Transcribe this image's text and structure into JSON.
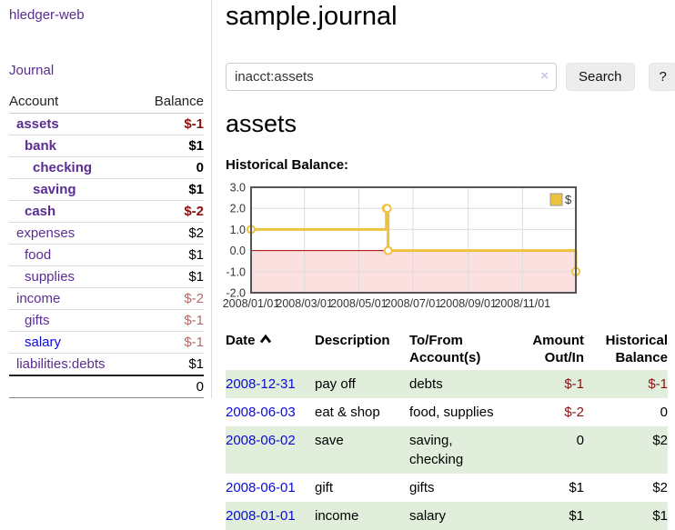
{
  "colors": {
    "purple": "#5b2d91",
    "blue": "#0b0bd5",
    "neg_strong": "#8b1111",
    "neg_soft": "#b26a6a",
    "stripe_green": "#e0eedb",
    "button_bg": "#ededed",
    "chart_line": "#edc240",
    "chart_negative_fill": "#fcdfdf",
    "chart_zero_line": "#a40000",
    "chart_grid": "#dcdcdc",
    "chart_border": "#545454"
  },
  "sidebar": {
    "brand": "hledger-web",
    "journal_link": "Journal",
    "table": {
      "headers": [
        "Account",
        "Balance"
      ],
      "rows": [
        {
          "account": "assets",
          "balance": "$-1",
          "indent": 0,
          "bold": true
        },
        {
          "account": "bank",
          "balance": "$1",
          "indent": 1,
          "bold": true
        },
        {
          "account": "checking",
          "balance": "0",
          "indent": 2,
          "bold": true
        },
        {
          "account": "saving",
          "balance": "$1",
          "indent": 2,
          "bold": true
        },
        {
          "account": "cash",
          "balance": "$-2",
          "indent": 1,
          "bold": true
        },
        {
          "account": "expenses",
          "balance": "$2",
          "indent": 0,
          "bold": false
        },
        {
          "account": "food",
          "balance": "$1",
          "indent": 1,
          "bold": false
        },
        {
          "account": "supplies",
          "balance": "$1",
          "indent": 1,
          "bold": false
        },
        {
          "account": "income",
          "balance": "$-2",
          "indent": 0,
          "bold": false
        },
        {
          "account": "gifts",
          "balance": "$-1",
          "indent": 1,
          "bold": false
        },
        {
          "account": "salary",
          "balance": "$-1",
          "indent": 1,
          "bold": false,
          "link_style": "blue"
        },
        {
          "account": "liabilities:debts",
          "balance": "$1",
          "indent": 0,
          "bold": false
        }
      ],
      "total": "0"
    }
  },
  "main": {
    "title": "sample.journal",
    "search": {
      "value": "inacct:assets",
      "clear_icon": "×",
      "button_label": "Search",
      "help_label": "?"
    },
    "account_heading": "assets",
    "chart_heading": "Historical Balance:"
  },
  "chart_data": {
    "type": "line",
    "step": true,
    "title": "Historical Balance",
    "series": [
      {
        "name": "$",
        "color": "#edc240",
        "points": [
          [
            "2008-01-01",
            1
          ],
          [
            "2008-06-01",
            2
          ],
          [
            "2008-06-02",
            2
          ],
          [
            "2008-06-03",
            0
          ],
          [
            "2008-12-31",
            -1
          ]
        ]
      }
    ],
    "x_range": [
      "2008-01-01",
      "2008-12-31"
    ],
    "x_ticks": [
      "2008/01/01",
      "2008/03/01",
      "2008/05/01",
      "2008/07/01",
      "2008/09/01",
      "2008/11/01"
    ],
    "y_ticks": [
      3.0,
      2.0,
      1.0,
      0.0,
      -1.0,
      -2.0
    ],
    "ylim": [
      -2,
      3
    ],
    "grid": true,
    "negative_region": true,
    "legend": {
      "label": "$",
      "position": "top-right"
    }
  },
  "register": {
    "headers": [
      {
        "line1": "Date",
        "sort": "asc"
      },
      {
        "line1": "Description"
      },
      {
        "line1": "To/From",
        "line2": "Account(s)"
      },
      {
        "line1": "Amount",
        "line2": "Out/In"
      },
      {
        "line1": "Historical",
        "line2": "Balance"
      }
    ],
    "rows": [
      {
        "date": "2008-12-31",
        "description": "pay off",
        "accounts": "debts",
        "amount": "$-1",
        "balance": "$-1"
      },
      {
        "date": "2008-06-03",
        "description": "eat & shop",
        "accounts": "food, supplies",
        "amount": "$-2",
        "balance": "0"
      },
      {
        "date": "2008-06-02",
        "description": "save",
        "accounts": "saving, checking",
        "amount": "0",
        "balance": "$2"
      },
      {
        "date": "2008-06-01",
        "description": "gift",
        "accounts": "gifts",
        "amount": "$1",
        "balance": "$2"
      },
      {
        "date": "2008-01-01",
        "description": "income",
        "accounts": "salary",
        "amount": "$1",
        "balance": "$1"
      }
    ]
  }
}
